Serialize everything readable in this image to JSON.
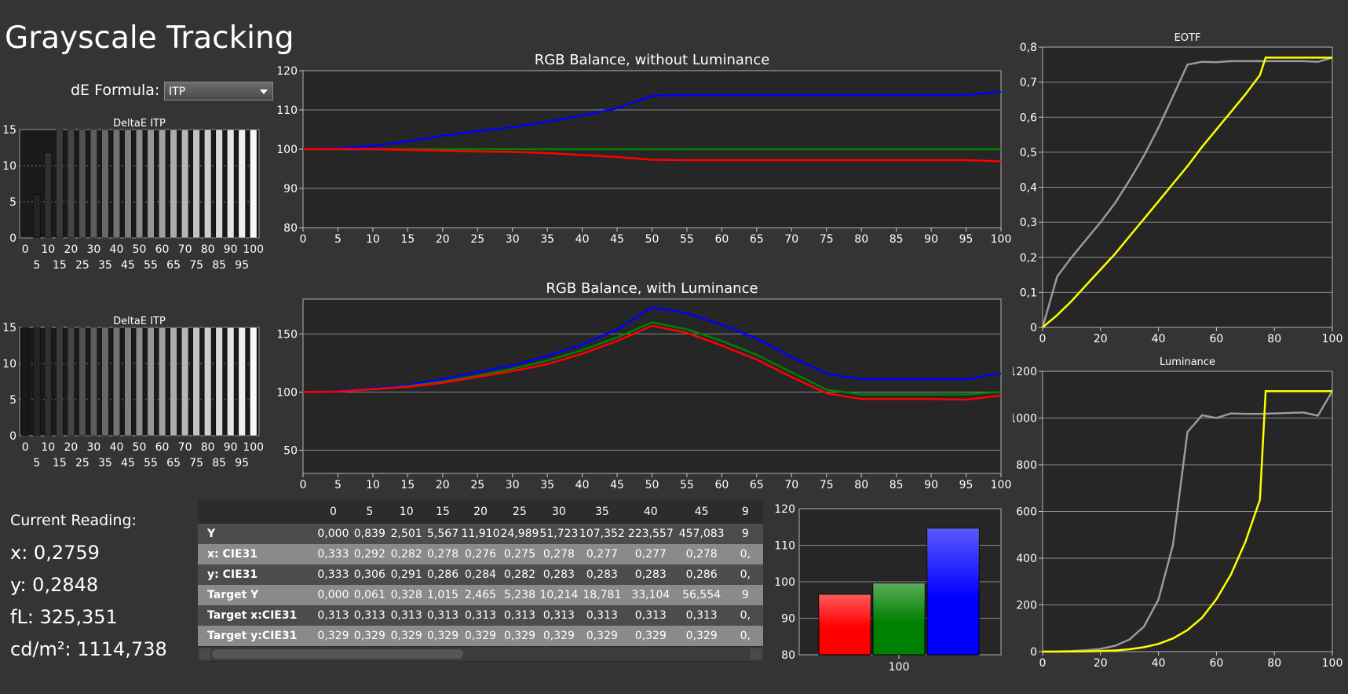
{
  "page": {
    "title": "Grayscale Tracking",
    "de_formula_label": "dE Formula:",
    "de_formula_value": "ITP",
    "current_reading_label": "Current Reading:",
    "reading_x": "x: 0,2759",
    "reading_y": "y: 0,2848",
    "reading_fl": "fL: 325,351",
    "reading_cd": "cd/m²: 1114,738"
  },
  "colors": {
    "background": "#343434",
    "plot_bg": "#262626",
    "red": "#ff0000",
    "green": "#008000",
    "blue": "#0000ff",
    "yellow": "#ffff00",
    "gray": "#9a9a9a"
  },
  "table": {
    "columns": [
      "0",
      "5",
      "10",
      "15",
      "20",
      "25",
      "30",
      "35",
      "40",
      "45",
      "9"
    ],
    "rows": [
      {
        "label": "Y",
        "values": [
          "0,000",
          "0,839",
          "2,501",
          "5,567",
          "11,910",
          "24,989",
          "51,723",
          "107,352",
          "223,557",
          "457,083",
          "9"
        ]
      },
      {
        "label": "x: CIE31",
        "values": [
          "0,333",
          "0,292",
          "0,282",
          "0,278",
          "0,276",
          "0,275",
          "0,278",
          "0,277",
          "0,277",
          "0,278",
          "0,"
        ]
      },
      {
        "label": "y: CIE31",
        "values": [
          "0,333",
          "0,306",
          "0,291",
          "0,286",
          "0,284",
          "0,282",
          "0,283",
          "0,283",
          "0,283",
          "0,286",
          "0,"
        ]
      },
      {
        "label": "Target Y",
        "values": [
          "0,000",
          "0,061",
          "0,328",
          "1,015",
          "2,465",
          "5,238",
          "10,214",
          "18,781",
          "33,104",
          "56,554",
          "9"
        ]
      },
      {
        "label": "Target x:CIE31",
        "values": [
          "0,313",
          "0,313",
          "0,313",
          "0,313",
          "0,313",
          "0,313",
          "0,313",
          "0,313",
          "0,313",
          "0,313",
          "0,"
        ]
      },
      {
        "label": "Target y:CIE31",
        "values": [
          "0,329",
          "0,329",
          "0,329",
          "0,329",
          "0,329",
          "0,329",
          "0,329",
          "0,329",
          "0,329",
          "0,329",
          "0,"
        ]
      }
    ]
  },
  "chart_data": [
    {
      "id": "deltae1",
      "type": "bar",
      "title": "DeltaE ITP",
      "categories": [
        "0",
        "5",
        "10",
        "15",
        "20",
        "25",
        "30",
        "35",
        "40",
        "45",
        "50",
        "55",
        "60",
        "65",
        "70",
        "75",
        "80",
        "85",
        "90",
        "95",
        "100"
      ],
      "values": [
        0,
        6,
        11.8,
        15,
        15,
        15,
        15,
        15,
        15,
        15,
        15,
        15,
        15,
        15,
        15,
        15,
        15,
        15,
        15,
        15,
        15
      ],
      "ylim": [
        0,
        15
      ],
      "yticks": [
        "0",
        "5",
        "10",
        "15"
      ],
      "xticks_top": [
        "0",
        "10",
        "20",
        "30",
        "40",
        "50",
        "60",
        "70",
        "80",
        "90",
        "100"
      ],
      "xticks_bottom": [
        "5",
        "15",
        "25",
        "35",
        "45",
        "55",
        "65",
        "75",
        "85",
        "95"
      ]
    },
    {
      "id": "deltae2",
      "type": "bar",
      "title": "DeltaE ITP",
      "categories": [
        "0",
        "5",
        "10",
        "15",
        "20",
        "25",
        "30",
        "35",
        "40",
        "45",
        "50",
        "55",
        "60",
        "65",
        "70",
        "75",
        "80",
        "85",
        "90",
        "95",
        "100"
      ],
      "values": [
        15,
        15,
        15,
        15,
        15,
        15,
        15,
        15,
        15,
        15,
        15,
        15,
        15,
        15,
        15,
        15,
        15,
        15,
        15,
        15,
        15
      ],
      "ylim": [
        0,
        15
      ],
      "yticks": [
        "0",
        "5",
        "10",
        "15"
      ],
      "xticks_top": [
        "0",
        "10",
        "20",
        "30",
        "40",
        "50",
        "60",
        "70",
        "80",
        "90",
        "100"
      ],
      "xticks_bottom": [
        "5",
        "15",
        "25",
        "35",
        "45",
        "55",
        "65",
        "75",
        "85",
        "95"
      ]
    },
    {
      "id": "rgb_no_lum",
      "type": "line",
      "title": "RGB Balance, without Luminance",
      "x": [
        0,
        5,
        10,
        15,
        20,
        25,
        30,
        35,
        40,
        45,
        50,
        55,
        60,
        65,
        70,
        75,
        80,
        85,
        90,
        95,
        100
      ],
      "ylim": [
        80,
        120
      ],
      "yticks": [
        "80",
        "90",
        "100",
        "110",
        "120"
      ],
      "xticks": [
        "0",
        "5",
        "10",
        "15",
        "20",
        "25",
        "30",
        "35",
        "40",
        "45",
        "50",
        "55",
        "60",
        "65",
        "70",
        "75",
        "80",
        "85",
        "90",
        "95",
        "100"
      ],
      "series": [
        {
          "color": "#0000ff",
          "values": [
            100,
            100.2,
            100.8,
            102,
            103.4,
            104.6,
            105.6,
            107,
            108.6,
            110.4,
            113.6,
            113.8,
            113.8,
            113.8,
            113.8,
            113.8,
            113.8,
            113.8,
            113.8,
            113.8,
            114.6
          ]
        },
        {
          "color": "#008000",
          "values": [
            100,
            100,
            100,
            100,
            100,
            100,
            100,
            100,
            100,
            100,
            100,
            100,
            100,
            100,
            100,
            100,
            100,
            100,
            100,
            100,
            100
          ]
        },
        {
          "color": "#ff0000",
          "values": [
            100,
            100,
            100,
            99.8,
            99.6,
            99.4,
            99.3,
            99,
            98.5,
            98,
            97.3,
            97.2,
            97.2,
            97.2,
            97.2,
            97.2,
            97.2,
            97.2,
            97.2,
            97.2,
            96.9
          ]
        }
      ]
    },
    {
      "id": "rgb_lum",
      "type": "line",
      "title": "RGB Balance, with Luminance",
      "x": [
        0,
        5,
        10,
        15,
        20,
        25,
        30,
        35,
        40,
        45,
        50,
        55,
        60,
        65,
        70,
        75,
        80,
        85,
        90,
        95,
        100
      ],
      "ylim": [
        30,
        180
      ],
      "yticks": [
        "50",
        "100",
        "150"
      ],
      "xticks": [
        "0",
        "5",
        "10",
        "15",
        "20",
        "25",
        "30",
        "35",
        "40",
        "45",
        "50",
        "55",
        "60",
        "65",
        "70",
        "75",
        "80",
        "85",
        "90",
        "95",
        "100"
      ],
      "series": [
        {
          "color": "#0000ff",
          "values": [
            100,
            101,
            103,
            106,
            111,
            117,
            123,
            131,
            141,
            154,
            173,
            168,
            158,
            146,
            130,
            116,
            111,
            111,
            111,
            111,
            116
          ]
        },
        {
          "color": "#008000",
          "values": [
            100,
            100.5,
            102.5,
            105,
            109,
            114,
            120,
            127,
            136,
            147,
            160,
            154,
            144,
            132,
            117,
            102,
            98,
            98,
            98,
            98,
            100
          ]
        },
        {
          "color": "#ff0000",
          "values": [
            100,
            100.5,
            102.5,
            104.5,
            108,
            113,
            118,
            124,
            133,
            144,
            157,
            151,
            140,
            128,
            113,
            99,
            94,
            94,
            94,
            93.5,
            97
          ]
        }
      ]
    },
    {
      "id": "eotf",
      "type": "line",
      "title": "EOTF",
      "xlim": [
        0,
        100
      ],
      "ylim": [
        0,
        0.8
      ],
      "yticks": [
        "0",
        "0,1",
        "0,2",
        "0,3",
        "0,4",
        "0,5",
        "0,6",
        "0,7",
        "0,8"
      ],
      "xticks": [
        "0",
        "20",
        "40",
        "60",
        "80",
        "100"
      ],
      "series": [
        {
          "color": "#9a9a9a",
          "x": [
            0,
            5,
            10,
            15,
            20,
            25,
            30,
            35,
            40,
            45,
            50,
            55,
            60,
            65,
            70,
            75,
            80,
            85,
            90,
            95,
            100
          ],
          "values": [
            0,
            0.145,
            0.2,
            0.25,
            0.3,
            0.355,
            0.42,
            0.49,
            0.57,
            0.66,
            0.75,
            0.758,
            0.757,
            0.76,
            0.76,
            0.76,
            0.76,
            0.76,
            0.76,
            0.758,
            0.77
          ]
        },
        {
          "color": "#ffff00",
          "x": [
            0,
            5,
            10,
            15,
            20,
            25,
            30,
            35,
            40,
            45,
            50,
            55,
            60,
            65,
            70,
            75,
            77,
            80,
            85,
            90,
            95,
            100
          ],
          "values": [
            0,
            0.035,
            0.075,
            0.12,
            0.165,
            0.21,
            0.26,
            0.31,
            0.36,
            0.41,
            0.46,
            0.515,
            0.565,
            0.615,
            0.665,
            0.72,
            0.77,
            0.77,
            0.77,
            0.77,
            0.77,
            0.77
          ]
        }
      ]
    },
    {
      "id": "luminance",
      "type": "line",
      "title": "Luminance",
      "xlim": [
        0,
        100
      ],
      "ylim": [
        0,
        1200
      ],
      "yticks": [
        "0",
        "200",
        "400",
        "600",
        "800",
        "1000",
        "1200"
      ],
      "xticks": [
        "0",
        "20",
        "40",
        "60",
        "80",
        "100"
      ],
      "series": [
        {
          "color": "#9a9a9a",
          "x": [
            0,
            5,
            10,
            15,
            20,
            25,
            30,
            35,
            40,
            45,
            50,
            55,
            60,
            65,
            70,
            75,
            80,
            85,
            90,
            95,
            100
          ],
          "values": [
            0,
            0.8,
            2.5,
            5.6,
            11.9,
            25,
            51.7,
            107.4,
            223.6,
            457.1,
            940,
            1012,
            1000,
            1020,
            1018,
            1018,
            1020,
            1022,
            1024,
            1010,
            1115
          ]
        },
        {
          "color": "#ffff00",
          "x": [
            0,
            5,
            10,
            15,
            20,
            25,
            30,
            35,
            40,
            45,
            50,
            55,
            60,
            65,
            70,
            75,
            77,
            80,
            85,
            90,
            95,
            100
          ],
          "values": [
            0,
            0.06,
            0.33,
            1.0,
            2.5,
            5.2,
            10.2,
            18.8,
            33.1,
            56.6,
            92,
            145,
            225,
            330,
            470,
            650,
            1115,
            1115,
            1115,
            1115,
            1115,
            1115
          ]
        }
      ]
    },
    {
      "id": "rgb_bars",
      "type": "bar",
      "categories": [
        "100"
      ],
      "ylim": [
        80,
        120
      ],
      "yticks": [
        "80",
        "90",
        "100",
        "110",
        "120"
      ],
      "series": [
        {
          "color": "#ff0000",
          "values": [
            96.5
          ]
        },
        {
          "color": "#008000",
          "values": [
            99.6
          ]
        },
        {
          "color": "#0000ff",
          "values": [
            114.6
          ]
        }
      ]
    }
  ]
}
